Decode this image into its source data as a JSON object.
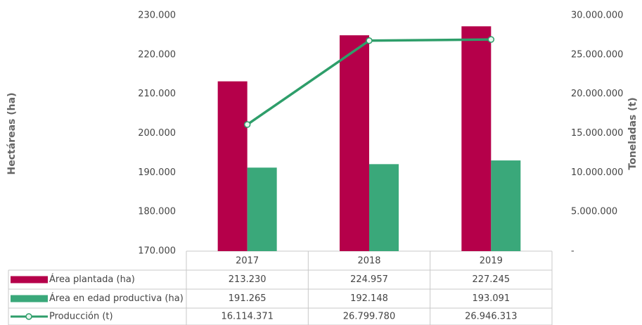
{
  "chart_data": {
    "type": "bar",
    "y_label": "Hectáreas (ha)",
    "y2_label": "Toneladas (t)",
    "categories": [
      "2017",
      "2018",
      "2019"
    ],
    "series": [
      {
        "name": "Área plantada (ha)",
        "color": "#b5004a",
        "type": "bar",
        "values": [
          213230,
          224957,
          227245
        ],
        "value_labels": [
          "213.230",
          "224.957",
          "227.245"
        ]
      },
      {
        "name": "Área en edad productiva (ha)",
        "color": "#3aa87a",
        "type": "bar",
        "values": [
          191265,
          192148,
          193091
        ],
        "value_labels": [
          "191.265",
          "192.148",
          "193.091"
        ]
      },
      {
        "name": "Producción (t)",
        "color": "#2e9e6a",
        "type": "line",
        "axis": "y2",
        "values": [
          16114371,
          26799780,
          26946313
        ],
        "value_labels": [
          "16.114.371",
          "26.799.780",
          "26.946.313"
        ]
      }
    ],
    "ylim": [
      170000,
      230000
    ],
    "yticks": [
      {
        "value": 170000,
        "label": "170.000"
      },
      {
        "value": 180000,
        "label": "180.000"
      },
      {
        "value": 190000,
        "label": "190.000"
      },
      {
        "value": 200000,
        "label": "200.000"
      },
      {
        "value": 210000,
        "label": "210.000"
      },
      {
        "value": 220000,
        "label": "220.000"
      },
      {
        "value": 230000,
        "label": "230.000"
      }
    ],
    "y2lim": [
      0,
      30000000
    ],
    "y2ticks": [
      {
        "value": 0,
        "label": "-"
      },
      {
        "value": 5000000,
        "label": "5.000.000"
      },
      {
        "value": 10000000,
        "label": "10.000.000"
      },
      {
        "value": 15000000,
        "label": "15.000.000"
      },
      {
        "value": 20000000,
        "label": "20.000.000"
      },
      {
        "value": 25000000,
        "label": "25.000.000"
      },
      {
        "value": 30000000,
        "label": "30.000.000"
      }
    ],
    "grid": false
  }
}
